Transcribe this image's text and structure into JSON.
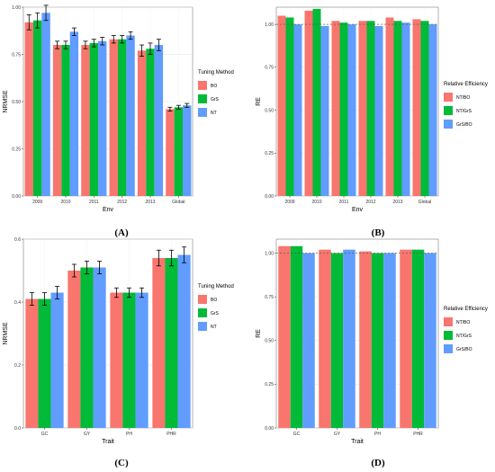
{
  "chart_data": [
    {
      "type": "bar",
      "panel_label": "(A)",
      "xlabel": "Env",
      "ylabel": "NRMSE",
      "ylim": [
        0,
        1.0
      ],
      "yticks": [
        "0.00",
        "0.25",
        "0.50",
        "0.75",
        "1.00"
      ],
      "categories": [
        "2009",
        "2010",
        "2011",
        "2012",
        "2013",
        "Global"
      ],
      "legend_title": "Tuning Method",
      "error_bars": true,
      "series": [
        {
          "name": "BO",
          "color": "#F8766D",
          "values": [
            0.92,
            0.8,
            0.8,
            0.83,
            0.77,
            0.46
          ],
          "errors": [
            0.04,
            0.02,
            0.02,
            0.02,
            0.03,
            0.01
          ]
        },
        {
          "name": "GrS",
          "color": "#00BA38",
          "values": [
            0.93,
            0.8,
            0.81,
            0.83,
            0.78,
            0.47
          ],
          "errors": [
            0.04,
            0.02,
            0.02,
            0.02,
            0.03,
            0.01
          ]
        },
        {
          "name": "NT",
          "color": "#619CFF",
          "values": [
            0.97,
            0.87,
            0.82,
            0.85,
            0.8,
            0.48
          ],
          "errors": [
            0.04,
            0.02,
            0.02,
            0.02,
            0.03,
            0.01
          ]
        }
      ]
    },
    {
      "type": "bar",
      "panel_label": "(B)",
      "xlabel": "Env",
      "ylabel": "RE",
      "ylim": [
        0,
        1.1
      ],
      "yticks": [
        "0.00",
        "0.25",
        "0.50",
        "0.75",
        "1.00"
      ],
      "reference_line": 1.0,
      "categories": [
        "2009",
        "2010",
        "2011",
        "2012",
        "2013",
        "Global"
      ],
      "legend_title": "Relative Efficiency",
      "series": [
        {
          "name": "NT/BO",
          "color": "#F8766D",
          "values": [
            1.05,
            1.08,
            1.02,
            1.02,
            1.04,
            1.03
          ]
        },
        {
          "name": "NT/GrS",
          "color": "#00BA38",
          "values": [
            1.04,
            1.09,
            1.01,
            1.02,
            1.02,
            1.02
          ]
        },
        {
          "name": "GrS/BO",
          "color": "#619CFF",
          "values": [
            1.0,
            0.99,
            1.0,
            0.99,
            1.01,
            1.0
          ]
        }
      ]
    },
    {
      "type": "bar",
      "panel_label": "(C)",
      "xlabel": "Trait",
      "ylabel": "NRMSE",
      "ylim": [
        0,
        0.6
      ],
      "yticks": [
        "0.0",
        "0.2",
        "0.4",
        "0.6"
      ],
      "categories": [
        "GC",
        "GY",
        "PH",
        "PHR"
      ],
      "legend_title": "Tuning Method",
      "error_bars": true,
      "series": [
        {
          "name": "BO",
          "color": "#F8766D",
          "values": [
            0.41,
            0.5,
            0.43,
            0.54
          ],
          "errors": [
            0.02,
            0.02,
            0.015,
            0.025
          ]
        },
        {
          "name": "GrS",
          "color": "#00BA38",
          "values": [
            0.41,
            0.51,
            0.43,
            0.54
          ],
          "errors": [
            0.02,
            0.02,
            0.015,
            0.025
          ]
        },
        {
          "name": "NT",
          "color": "#619CFF",
          "values": [
            0.43,
            0.51,
            0.43,
            0.55
          ],
          "errors": [
            0.02,
            0.02,
            0.015,
            0.025
          ]
        }
      ]
    },
    {
      "type": "bar",
      "panel_label": "(D)",
      "xlabel": "Trait",
      "ylabel": "RE",
      "ylim": [
        0,
        1.08
      ],
      "yticks": [
        "0.00",
        "0.25",
        "0.50",
        "0.75",
        "1.00"
      ],
      "reference_line": 1.0,
      "categories": [
        "GC",
        "GY",
        "PH",
        "PHR"
      ],
      "legend_title": "Relative Efficiency",
      "series": [
        {
          "name": "NT/BO",
          "color": "#F8766D",
          "values": [
            1.04,
            1.02,
            1.01,
            1.02
          ]
        },
        {
          "name": "NT/GrS",
          "color": "#00BA38",
          "values": [
            1.04,
            1.0,
            1.0,
            1.02
          ]
        },
        {
          "name": "GrS/BO",
          "color": "#619CFF",
          "values": [
            1.0,
            1.02,
            1.0,
            1.0
          ]
        }
      ]
    }
  ]
}
